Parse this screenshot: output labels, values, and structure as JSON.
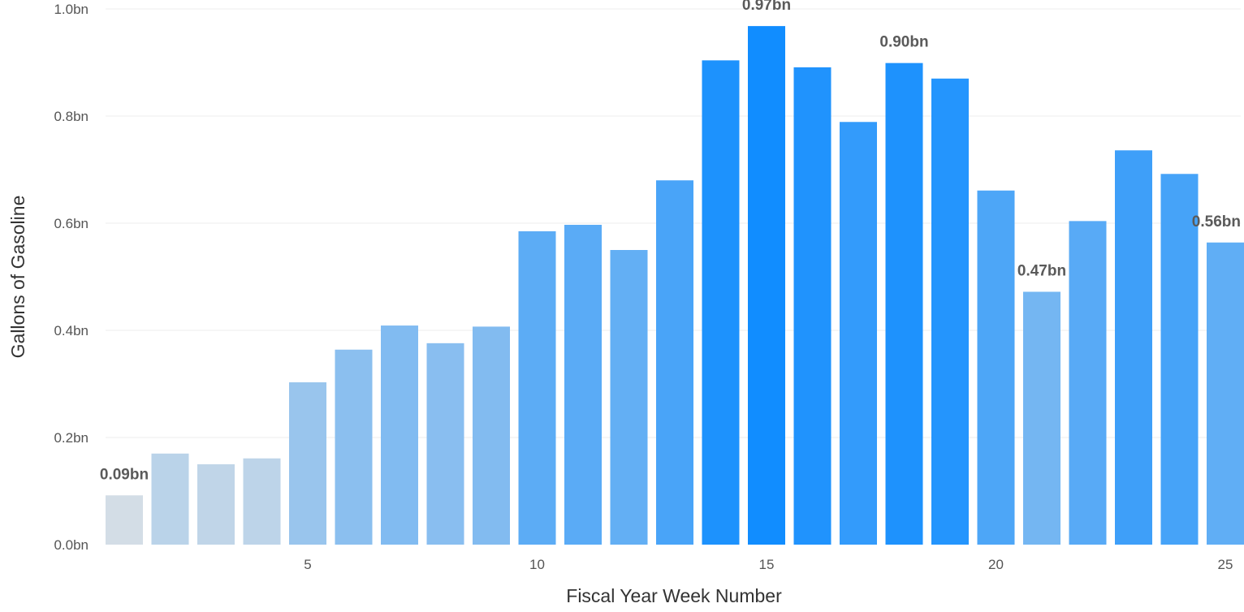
{
  "chart_data": {
    "type": "bar",
    "title": "",
    "xlabel": "Fiscal Year Week Number",
    "ylabel": "Gallons of Gasoline",
    "x": [
      1,
      2,
      3,
      4,
      5,
      6,
      7,
      8,
      9,
      10,
      11,
      12,
      13,
      14,
      15,
      16,
      17,
      18,
      19,
      20,
      21,
      22,
      23,
      24,
      25
    ],
    "values": [
      0.092,
      0.17,
      0.15,
      0.161,
      0.303,
      0.364,
      0.409,
      0.376,
      0.407,
      0.585,
      0.597,
      0.55,
      0.68,
      0.904,
      0.968,
      0.891,
      0.789,
      0.899,
      0.87,
      0.661,
      0.472,
      0.604,
      0.736,
      0.692,
      0.564
    ],
    "ylim": [
      0,
      1.0
    ],
    "yticks": [
      0.0,
      0.2,
      0.4,
      0.6,
      0.8,
      1.0
    ],
    "ytick_labels": [
      "0.0bn",
      "0.2bn",
      "0.4bn",
      "0.6bn",
      "0.8bn",
      "1.0bn"
    ],
    "xticks": [
      5,
      10,
      15,
      20,
      25
    ],
    "xtick_labels": [
      "5",
      "10",
      "15",
      "20",
      "25"
    ],
    "data_labels": [
      {
        "x": 1,
        "text": "0.09bn"
      },
      {
        "x": 15,
        "text": "0.97bn"
      },
      {
        "x": 18,
        "text": "0.90bn"
      },
      {
        "x": 21,
        "text": "0.47bn"
      },
      {
        "x": 25,
        "text": "0.56bn"
      }
    ],
    "color_scale": {
      "low": "#d3dde6",
      "high": "#118dff"
    },
    "grid": true,
    "legend": "none"
  }
}
